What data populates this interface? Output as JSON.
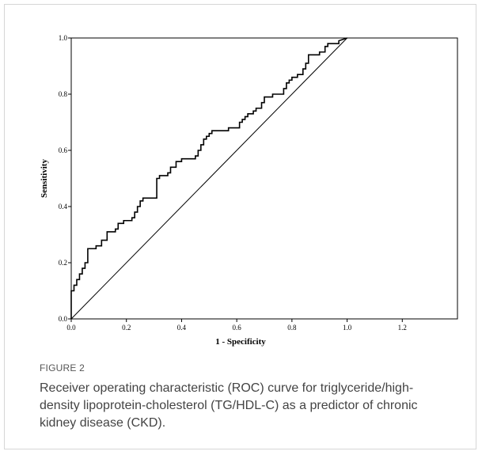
{
  "figure": {
    "label": "FIGURE 2",
    "caption": "Receiver operating characteristic (ROC) curve for triglyceride/high-density lipoprotein-cholesterol (TG/HDL-C) as a predictor of chronic kidney disease (CKD)."
  },
  "chart_data": {
    "type": "line",
    "title": "",
    "xlabel": "1 - Specificity",
    "ylabel": "Sensitivity",
    "xlim": [
      0,
      1.4
    ],
    "ylim": [
      0,
      1.0
    ],
    "x_ticks": [
      "0.0",
      "0.2",
      "0.4",
      "0.6",
      "0.8",
      "1.0",
      "1.2"
    ],
    "y_ticks": [
      "0.0",
      "0.2",
      "0.4",
      "0.6",
      "0.8",
      "1.0"
    ],
    "grid": false,
    "legend": "none",
    "series": [
      {
        "style": "step",
        "color": "#000000",
        "x": [
          0.0,
          0.0,
          0.01,
          0.01,
          0.02,
          0.02,
          0.03,
          0.03,
          0.04,
          0.04,
          0.05,
          0.05,
          0.06,
          0.06,
          0.07,
          0.07,
          0.09,
          0.09,
          0.11,
          0.11,
          0.13,
          0.13,
          0.16,
          0.16,
          0.17,
          0.17,
          0.19,
          0.19,
          0.22,
          0.22,
          0.23,
          0.23,
          0.24,
          0.24,
          0.25,
          0.25,
          0.26,
          0.26,
          0.27,
          0.27,
          0.31,
          0.31,
          0.31,
          0.31,
          0.32,
          0.32,
          0.35,
          0.35,
          0.36,
          0.36,
          0.38,
          0.38,
          0.4,
          0.4,
          0.45,
          0.45,
          0.46,
          0.46,
          0.47,
          0.47,
          0.48,
          0.48,
          0.49,
          0.49,
          0.5,
          0.5,
          0.51,
          0.51,
          0.57,
          0.57,
          0.61,
          0.61,
          0.62,
          0.62,
          0.63,
          0.63,
          0.64,
          0.64,
          0.66,
          0.66,
          0.67,
          0.67,
          0.69,
          0.69,
          0.7,
          0.7,
          0.73,
          0.73,
          0.77,
          0.77,
          0.78,
          0.78,
          0.79,
          0.79,
          0.8,
          0.8,
          0.82,
          0.82,
          0.84,
          0.84,
          0.85,
          0.85,
          0.86,
          0.86,
          0.9,
          0.9,
          0.92,
          0.92,
          0.93,
          0.93,
          0.97,
          0.97,
          1.0
        ],
        "y": [
          0.0,
          0.1,
          0.1,
          0.12,
          0.12,
          0.14,
          0.14,
          0.16,
          0.16,
          0.18,
          0.18,
          0.2,
          0.2,
          0.25,
          0.25,
          0.25,
          0.25,
          0.26,
          0.26,
          0.28,
          0.28,
          0.31,
          0.31,
          0.32,
          0.32,
          0.34,
          0.34,
          0.35,
          0.35,
          0.36,
          0.36,
          0.38,
          0.38,
          0.4,
          0.4,
          0.42,
          0.42,
          0.43,
          0.43,
          0.43,
          0.43,
          0.47,
          0.47,
          0.5,
          0.5,
          0.51,
          0.51,
          0.52,
          0.52,
          0.54,
          0.54,
          0.56,
          0.56,
          0.57,
          0.57,
          0.58,
          0.58,
          0.6,
          0.6,
          0.62,
          0.62,
          0.64,
          0.64,
          0.65,
          0.65,
          0.66,
          0.66,
          0.67,
          0.67,
          0.68,
          0.68,
          0.7,
          0.7,
          0.71,
          0.71,
          0.72,
          0.72,
          0.73,
          0.73,
          0.74,
          0.74,
          0.75,
          0.75,
          0.77,
          0.77,
          0.79,
          0.79,
          0.8,
          0.8,
          0.82,
          0.82,
          0.84,
          0.84,
          0.85,
          0.85,
          0.86,
          0.86,
          0.87,
          0.87,
          0.89,
          0.89,
          0.91,
          0.91,
          0.94,
          0.94,
          0.95,
          0.95,
          0.97,
          0.97,
          0.98,
          0.98,
          0.99,
          1.0
        ]
      },
      {
        "style": "reference",
        "color": "#000000",
        "x": [
          0.0,
          1.0
        ],
        "y": [
          0.0,
          1.0
        ]
      }
    ]
  }
}
